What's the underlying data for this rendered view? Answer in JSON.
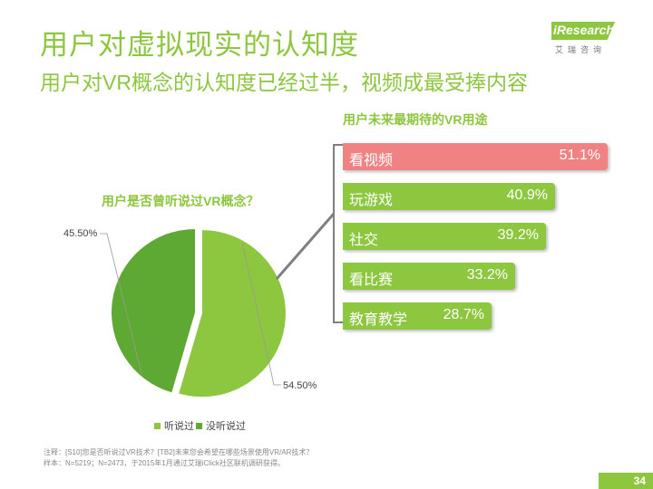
{
  "header": {
    "title": "用户对虚拟现实的认知度",
    "subtitle": "用户对VR概念的认知度已经过半，视频成最受捧内容"
  },
  "logo": {
    "name": "iResearch",
    "sub": "艾瑞咨询"
  },
  "footer": {
    "note1": "注释：[S10]您是否听说过VR技术？[TB2]未来您会希望在哪些场景使用VR/AR技术？",
    "note2": "样本：N=5219；N=2473，于2015年1月通过艾瑞iClick社区联机调研获得。",
    "page": "34"
  },
  "colors": {
    "accent": "#8dc63f",
    "heard": "#8dc63f",
    "not_heard": "#5ea834",
    "highlight_bar": "#f08283"
  },
  "chart_data": [
    {
      "type": "pie",
      "title": "用户是否曾听说过VR概念？",
      "slices": [
        {
          "name": "听说过",
          "value": 54.5,
          "label": "54.50%",
          "color": "#8dc63f",
          "exploded": true
        },
        {
          "name": "没听说过",
          "value": 45.5,
          "label": "45.50%",
          "color": "#5ea834",
          "exploded": false
        }
      ],
      "legend_position": "bottom"
    },
    {
      "type": "bar",
      "orientation": "horizontal",
      "title": "用户未来最期待的VR用途",
      "categories": [
        "看视频",
        "玩游戏",
        "社交",
        "看比赛",
        "教育教学"
      ],
      "values": [
        51.1,
        40.9,
        39.2,
        33.2,
        28.7
      ],
      "value_labels": [
        "51.1%",
        "40.9%",
        "39.2%",
        "33.2%",
        "28.7%"
      ],
      "highlight_index": 0
    }
  ]
}
